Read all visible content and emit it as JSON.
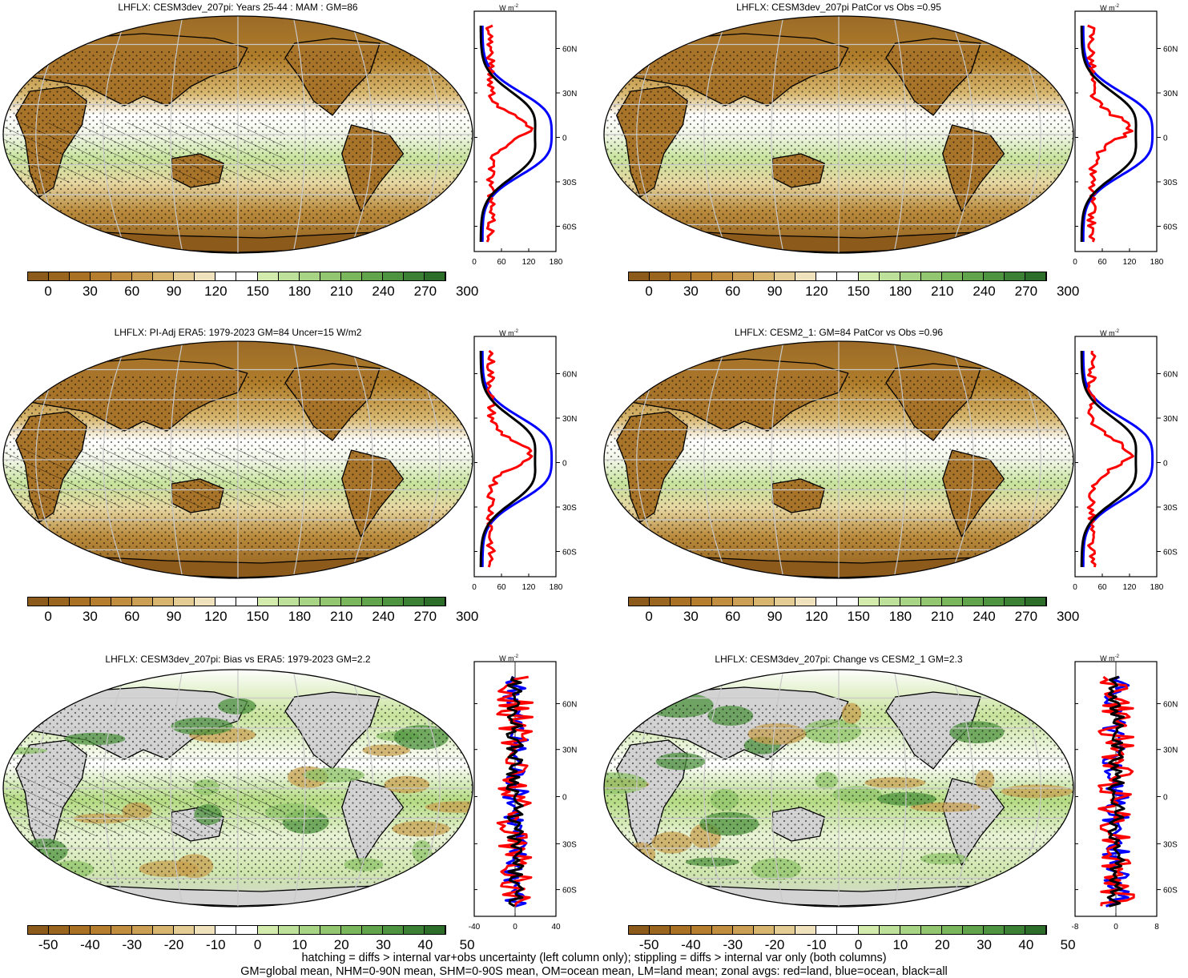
{
  "colors": {
    "brown_dark": "#8c5a1a",
    "brown_mid": "#b07d2a",
    "tan": "#d8b870",
    "white": "#ffffff",
    "green_light": "#b6dc82",
    "green_dark": "#2f7a2a",
    "land_gray": "#d3d3d3",
    "profile_land": "#ff0000",
    "profile_ocean": "#0000ff",
    "profile_all": "#000000"
  },
  "colorbar_abs": {
    "swatches": [
      "#8c5a1a",
      "#9a651f",
      "#a87124",
      "#b47e2e",
      "#c08e3e",
      "#cca054",
      "#d8b56e",
      "#e4cc94",
      "#efe2bd",
      "#ffffff",
      "#ffffff",
      "#d4ebae",
      "#bde19a",
      "#a8d486",
      "#92c671",
      "#7ab65c",
      "#62a44c",
      "#4e933f",
      "#3b8034",
      "#2c6d2a"
    ],
    "labels": [
      "0",
      "30",
      "60",
      "90",
      "120",
      "150",
      "180",
      "210",
      "240",
      "270",
      "300"
    ]
  },
  "colorbar_diff": {
    "swatches": [
      "#8c5a1a",
      "#9a651f",
      "#a87124",
      "#b47e2e",
      "#c08e3e",
      "#cca054",
      "#d8b56e",
      "#e4cc94",
      "#efe2bd",
      "#ffffff",
      "#ffffff",
      "#d4ebae",
      "#bde19a",
      "#a8d486",
      "#92c671",
      "#7ab65c",
      "#62a44c",
      "#4e933f",
      "#3b8034",
      "#2c6d2a"
    ],
    "labels": [
      "-50",
      "-40",
      "-30",
      "-20",
      "-10",
      "0",
      "10",
      "20",
      "30",
      "40",
      "50"
    ]
  },
  "profile_units": "W m",
  "profile_units_sup": "-2",
  "lat_labels": [
    "60N",
    "30N",
    "0",
    "30S",
    "60S"
  ],
  "panels": [
    {
      "title": "LHFLX: CESM3dev_207pi: Years 25-44 : MAM : GM=86",
      "xticks": [
        "0",
        "60",
        "120",
        "180"
      ],
      "kind": "abs"
    },
    {
      "title": "LHFLX: CESM3dev_207pi PatCor vs Obs =0.95",
      "xticks": [
        "0",
        "60",
        "120",
        "180"
      ],
      "kind": "abs"
    },
    {
      "title": "LHFLX: PI-Adj ERA5: 1979-2023 GM=84 Uncer=15 W/m2",
      "xticks": [
        "0",
        "60",
        "120",
        "180"
      ],
      "kind": "abs"
    },
    {
      "title": "LHFLX: CESM2_1: GM=84 PatCor vs Obs =0.96",
      "xticks": [
        "0",
        "60",
        "120",
        "180"
      ],
      "kind": "abs"
    },
    {
      "title": "LHFLX: CESM3dev_207pi: Bias vs ERA5: 1979-2023 GM=2.2",
      "xticks": [
        "-40",
        "0",
        "40"
      ],
      "kind": "diff"
    },
    {
      "title": "LHFLX: CESM3dev_207pi: Change vs CESM2_1 GM=2.3",
      "xticks": [
        "-8",
        "0",
        "8"
      ],
      "kind": "diff"
    }
  ],
  "footnote": {
    "line1": "hatching = diffs > internal var+obs uncertainty (left column only); stippling = diffs > internal var only (both columns)",
    "line2": "GM=global mean, NHM=0-90N mean, SHM=0-90S mean, OM=ocean mean, LM=land mean; zonal avgs: red=land, blue=ocean, black=all"
  }
}
